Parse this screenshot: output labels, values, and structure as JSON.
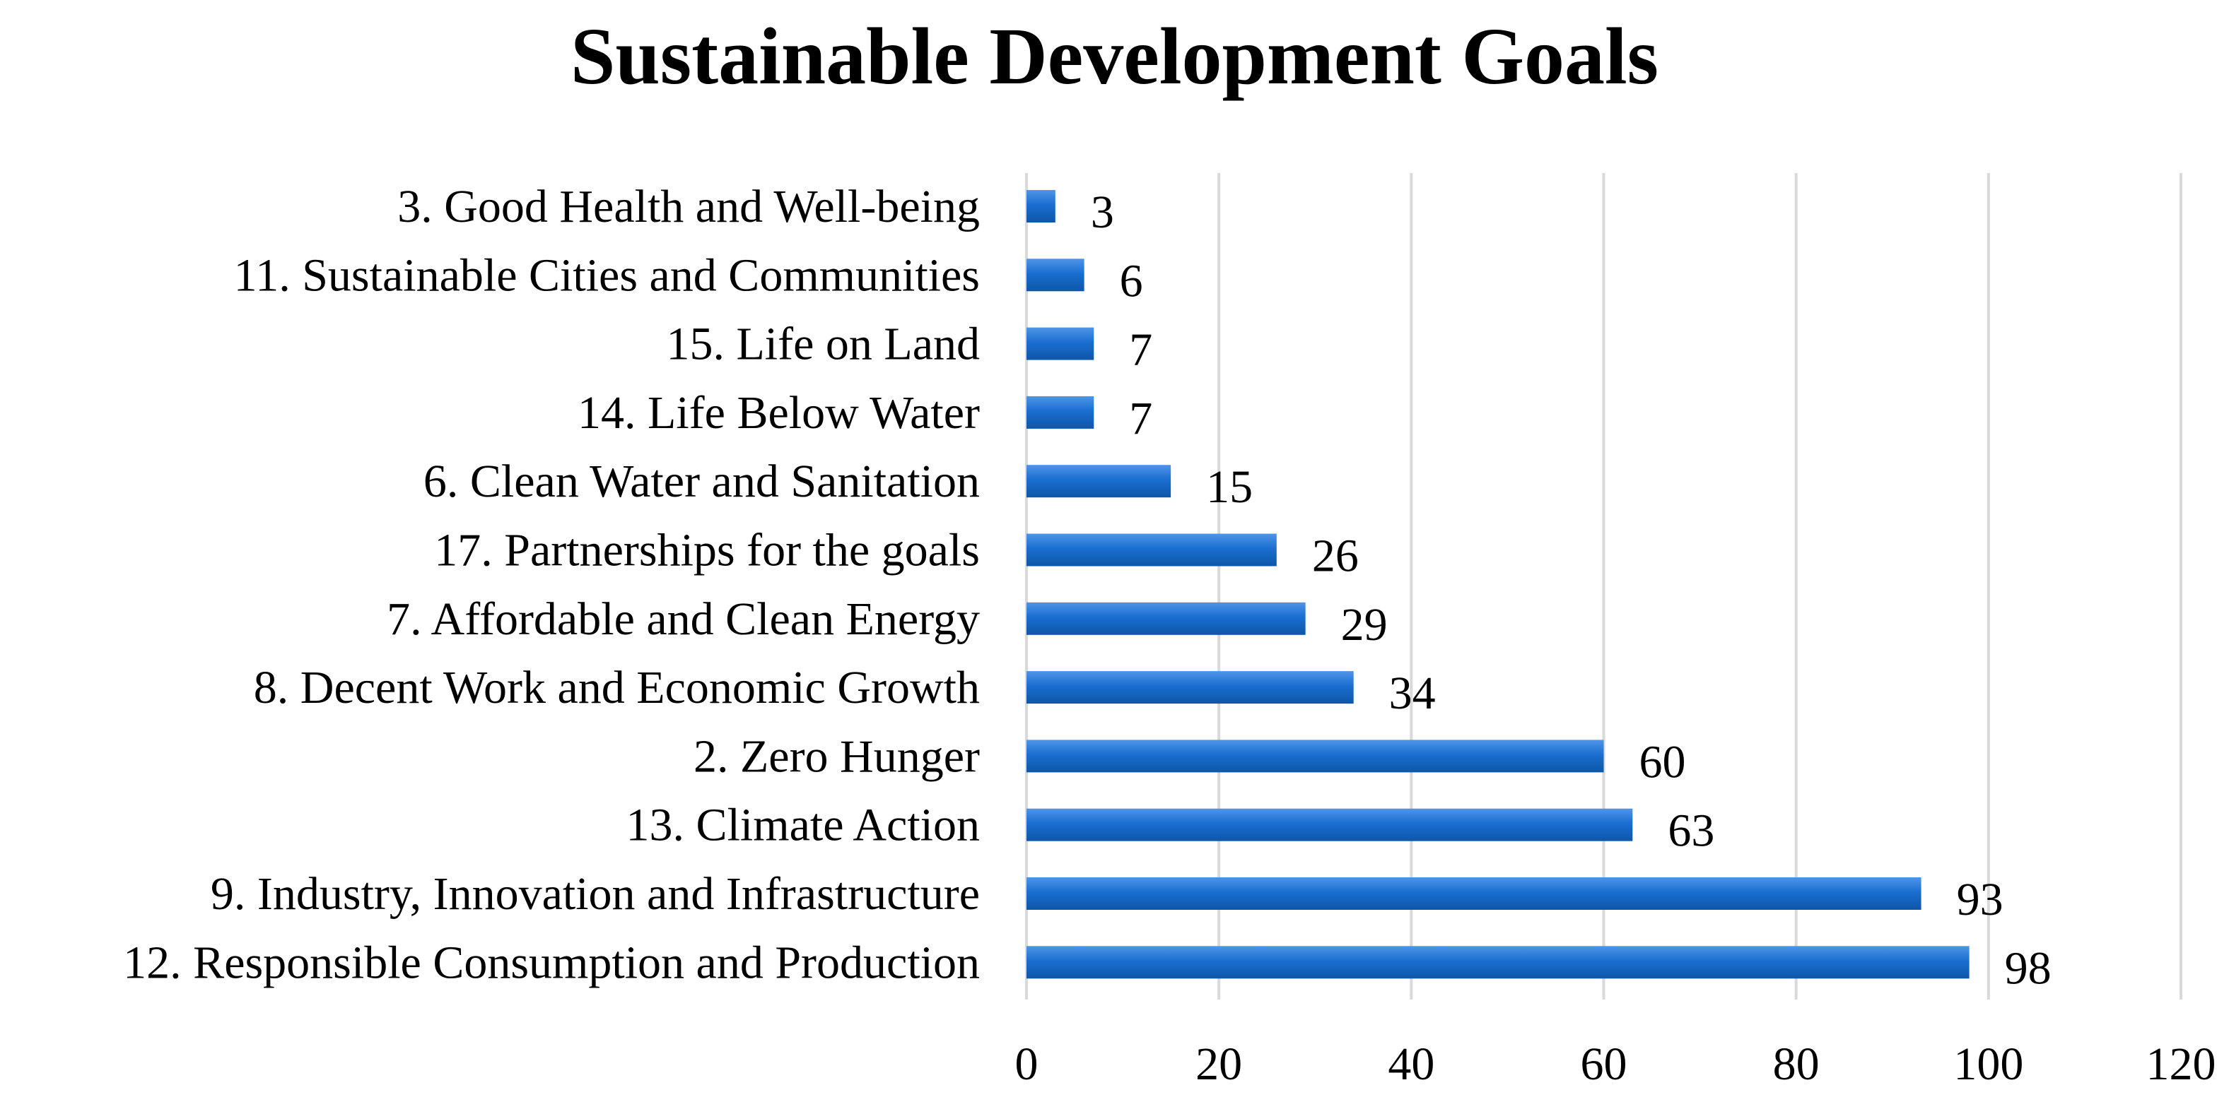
{
  "chart_data": {
    "type": "bar",
    "orientation": "horizontal",
    "title": "Sustainable Development Goals",
    "xlabel": "",
    "ylabel": "",
    "categories": [
      "3. Good Health and Well-being",
      "11. Sustainable Cities and Communities",
      "15. Life on Land",
      "14. Life Below Water",
      "6. Clean Water and Sanitation",
      "17. Partnerships for the goals",
      "7. Affordable and Clean Energy",
      "8. Decent Work and Economic Growth",
      "2. Zero Hunger",
      "13. Climate Action",
      "9. Industry, Innovation and Infrastructure",
      "12. Responsible Consumption and Production"
    ],
    "values": [
      3,
      6,
      7,
      7,
      15,
      26,
      29,
      34,
      60,
      63,
      93,
      98
    ],
    "xlim": [
      0,
      120
    ],
    "xticks": [
      0,
      20,
      40,
      60,
      80,
      100,
      120
    ],
    "grid": "vertical",
    "legend": "none",
    "bar_color": "#1a6fd1"
  }
}
